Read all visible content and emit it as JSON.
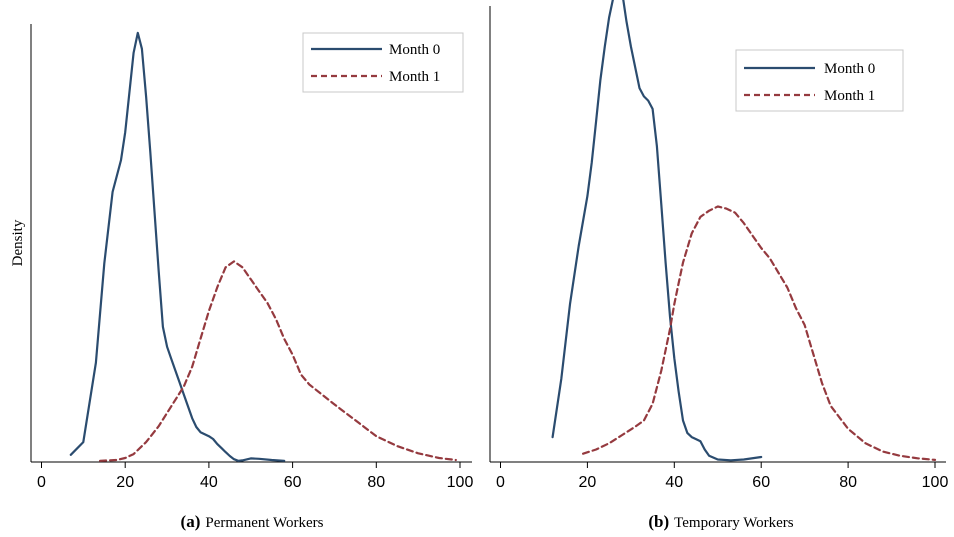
{
  "colors": {
    "month0": "#2b4c6f",
    "month1": "#953a3f"
  },
  "chart_data": [
    {
      "type": "line",
      "panel_letter": "(a)",
      "caption": "Permanent Workers",
      "ylabel": "Density",
      "xlim": [
        0,
        100
      ],
      "xticks": [
        0,
        20,
        40,
        60,
        80,
        100
      ],
      "ylim": [
        0,
        0.11
      ],
      "legend_position": "top-right",
      "series": [
        {
          "name": "Month 0",
          "style": "solid",
          "x": [
            7,
            10,
            13,
            15,
            17,
            18,
            19,
            20,
            21,
            22,
            23,
            24,
            25,
            26,
            27,
            28,
            29,
            30,
            31,
            32,
            33,
            34,
            35,
            36,
            37,
            38,
            39,
            40,
            41,
            42,
            43,
            44,
            45,
            46,
            47,
            48,
            50,
            52,
            55,
            58
          ],
          "y": [
            0.0018,
            0.005,
            0.025,
            0.05,
            0.068,
            0.072,
            0.076,
            0.083,
            0.093,
            0.103,
            0.108,
            0.104,
            0.092,
            0.078,
            0.063,
            0.048,
            0.034,
            0.029,
            0.026,
            0.023,
            0.02,
            0.017,
            0.014,
            0.011,
            0.0088,
            0.0075,
            0.007,
            0.0065,
            0.0058,
            0.0045,
            0.0035,
            0.0025,
            0.0015,
            0.0007,
            0.0003,
            0.0004,
            0.0009,
            0.0008,
            0.0005,
            0.0003
          ]
        },
        {
          "name": "Month 1",
          "style": "dashed",
          "x": [
            14,
            18,
            20,
            22,
            25,
            28,
            31,
            34,
            36,
            38,
            40,
            42,
            44,
            46,
            48,
            50,
            52,
            54,
            56,
            58,
            60,
            62,
            64,
            67,
            70,
            75,
            80,
            85,
            90,
            95,
            99
          ],
          "y": [
            0.0003,
            0.0005,
            0.001,
            0.002,
            0.005,
            0.009,
            0.014,
            0.019,
            0.024,
            0.031,
            0.038,
            0.044,
            0.049,
            0.0505,
            0.049,
            0.046,
            0.043,
            0.04,
            0.036,
            0.031,
            0.027,
            0.022,
            0.0195,
            0.017,
            0.0145,
            0.0105,
            0.0065,
            0.004,
            0.0022,
            0.001,
            0.0005
          ]
        }
      ]
    },
    {
      "type": "line",
      "panel_letter": "(b)",
      "caption": "Temporary Workers",
      "ylabel": "",
      "xlim": [
        0,
        100
      ],
      "xticks": [
        0,
        20,
        40,
        60,
        80,
        100
      ],
      "ylim": [
        0,
        0.11
      ],
      "legend_position": "top-right",
      "series": [
        {
          "name": "Month 0",
          "style": "solid",
          "x": [
            12,
            14,
            16,
            18,
            20,
            21,
            22,
            23,
            24,
            25,
            26,
            27,
            28,
            29,
            30,
            31,
            32,
            33,
            34,
            35,
            36,
            37,
            38,
            39,
            40,
            41,
            42,
            43,
            44,
            45,
            46,
            47,
            48,
            50,
            53,
            56,
            60
          ],
          "y": [
            0.006,
            0.02,
            0.038,
            0.052,
            0.064,
            0.072,
            0.082,
            0.092,
            0.1,
            0.107,
            0.112,
            0.115,
            0.113,
            0.106,
            0.1,
            0.095,
            0.09,
            0.088,
            0.087,
            0.085,
            0.076,
            0.062,
            0.048,
            0.035,
            0.025,
            0.017,
            0.01,
            0.007,
            0.006,
            0.0055,
            0.005,
            0.003,
            0.0015,
            0.0006,
            0.0004,
            0.0006,
            0.0012
          ]
        },
        {
          "name": "Month 1",
          "style": "dashed",
          "x": [
            19,
            22,
            25,
            28,
            31,
            33,
            35,
            37,
            39,
            40,
            41,
            42,
            44,
            46,
            48,
            50,
            52,
            54,
            56,
            58,
            60,
            62,
            64,
            66,
            68,
            70,
            72,
            74,
            76,
            80,
            84,
            88,
            92,
            96,
            100
          ],
          "y": [
            0.002,
            0.003,
            0.0045,
            0.0065,
            0.0085,
            0.01,
            0.014,
            0.022,
            0.032,
            0.038,
            0.043,
            0.048,
            0.055,
            0.059,
            0.0605,
            0.0615,
            0.061,
            0.06,
            0.0575,
            0.0545,
            0.0515,
            0.049,
            0.0455,
            0.042,
            0.037,
            0.033,
            0.026,
            0.019,
            0.0135,
            0.008,
            0.0045,
            0.0025,
            0.0015,
            0.0009,
            0.0005
          ]
        }
      ]
    }
  ]
}
